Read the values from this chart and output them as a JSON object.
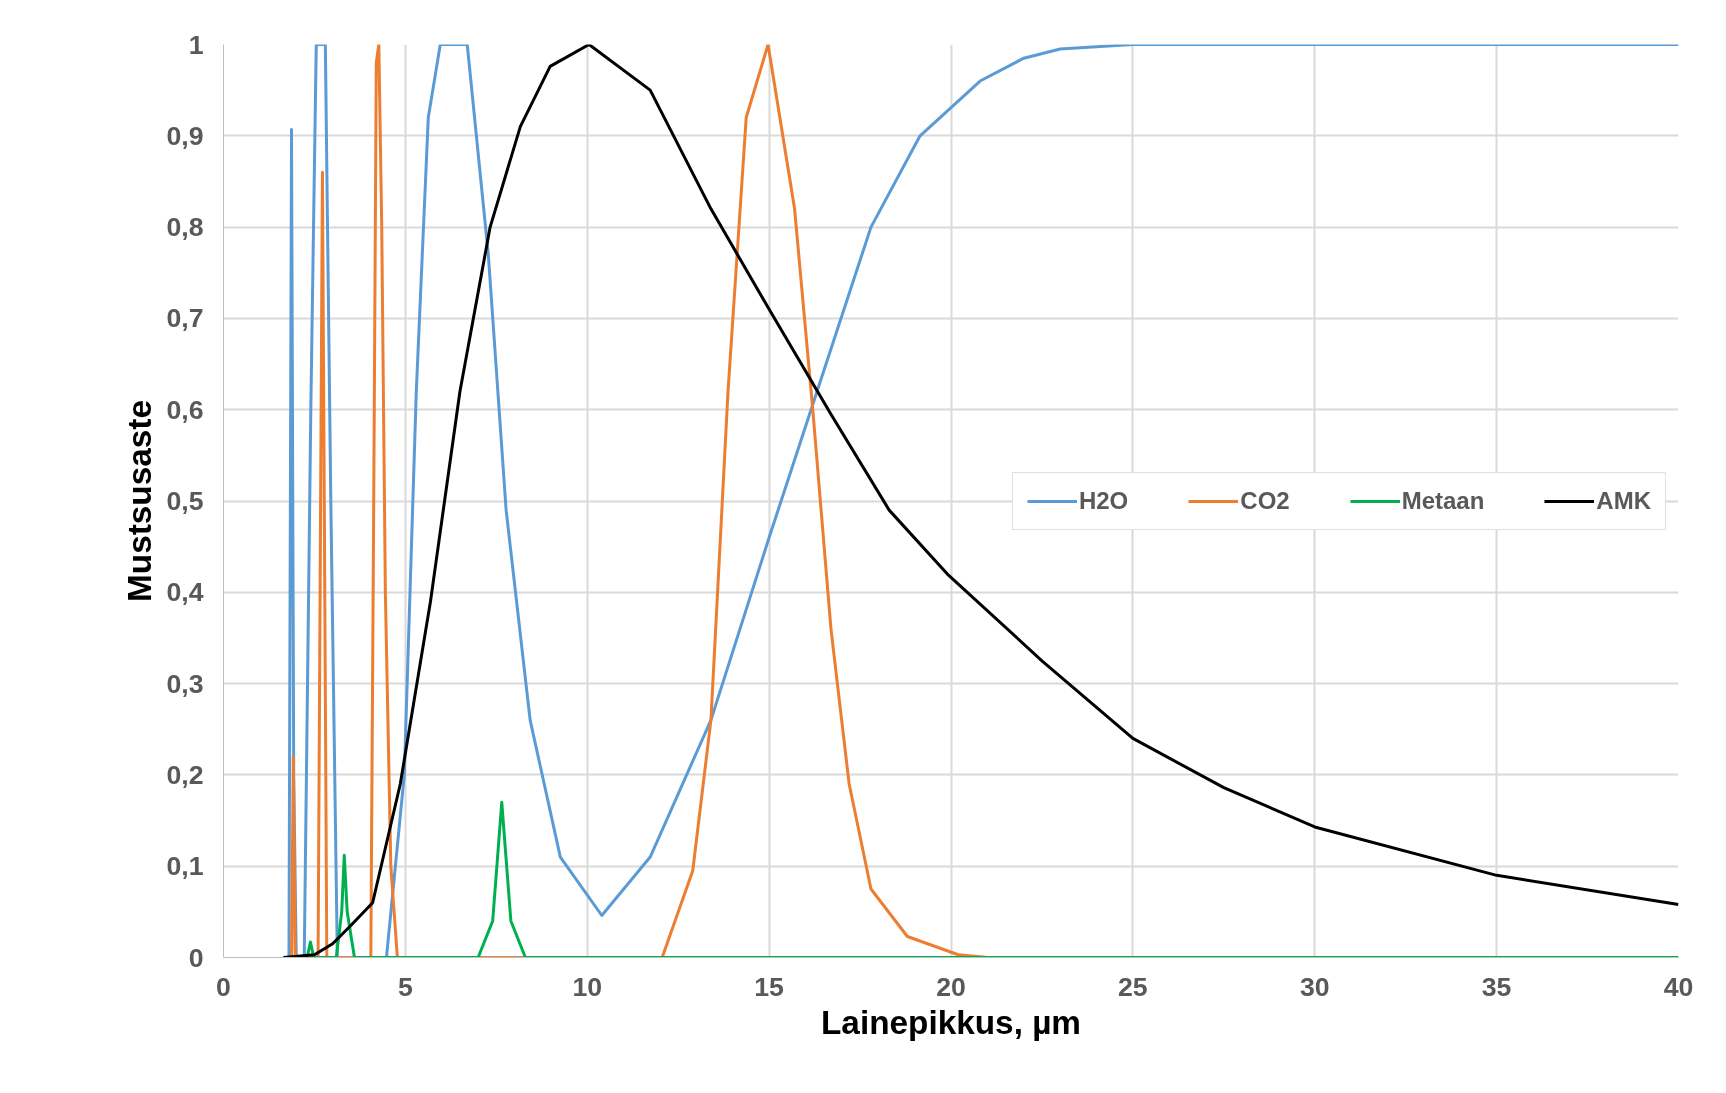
{
  "chart_data": {
    "type": "line",
    "xlabel": "Lainepikkus, µm",
    "ylabel": "Mustsusaste",
    "xlim": [
      0,
      40
    ],
    "ylim": [
      0,
      1
    ],
    "xticks": [
      0,
      5,
      10,
      15,
      20,
      25,
      30,
      35,
      40
    ],
    "yticks": [
      0,
      {
        "value": 0.1,
        "label": "0,1"
      },
      {
        "value": 0.2,
        "label": "0,2"
      },
      {
        "value": 0.3,
        "label": "0,3"
      },
      {
        "value": 0.4,
        "label": "0,4"
      },
      {
        "value": 0.5,
        "label": "0,5"
      },
      {
        "value": 0.6,
        "label": "0,6"
      },
      {
        "value": 0.7,
        "label": "0,7"
      },
      {
        "value": 0.8,
        "label": "0,8"
      },
      {
        "value": 0.9,
        "label": "0,9"
      },
      1
    ],
    "grid": true,
    "legend": "right",
    "marker": "none",
    "line_style": "solid",
    "series": [
      {
        "name": "H2O",
        "color": "#5b9bd5",
        "x": [
          1.65,
          1.8,
          1.87,
          1.93,
          2.0,
          2.22,
          2.4,
          2.55,
          2.8,
          2.95,
          3.13,
          4.0,
          4.48,
          4.97,
          5.3,
          5.63,
          5.96,
          6.7,
          7.28,
          7.77,
          8.43,
          9.26,
          10.4,
          11.73,
          13.4,
          15.0,
          16.4,
          17.8,
          19.15,
          20.8,
          22,
          23,
          25,
          40
        ],
        "values": [
          0,
          0,
          0.907,
          0.2,
          0,
          0,
          0.6,
          1,
          1,
          0.5,
          0,
          0,
          0,
          0.2,
          0.62,
          0.92,
          1,
          1,
          0.77,
          0.49,
          0.26,
          0.11,
          0.046,
          0.11,
          0.26,
          0.46,
          0.63,
          0.8,
          0.9,
          0.96,
          0.985,
          0.995,
          1,
          1
        ]
      },
      {
        "name": "CO2",
        "color": "#ed7d31",
        "x": [
          1.65,
          1.87,
          1.92,
          1.97,
          2.6,
          2.72,
          2.84,
          4.05,
          4.13,
          4.2,
          4.27,
          4.35,
          4.45,
          4.6,
          4.78,
          12.06,
          12.9,
          13.4,
          13.87,
          14.37,
          14.97,
          15.7,
          16.2,
          16.7,
          17.2,
          17.8,
          18.8,
          20.2,
          21,
          40
        ],
        "values": [
          0,
          0,
          0.22,
          0,
          0,
          0.86,
          0,
          0,
          0.5,
          0.98,
          1,
          0.8,
          0.4,
          0.1,
          0,
          0,
          0.095,
          0.26,
          0.62,
          0.92,
          1,
          0.82,
          0.6,
          0.36,
          0.19,
          0.075,
          0.023,
          0.003,
          0,
          0
        ]
      },
      {
        "name": "Metaan",
        "color": "#00b050",
        "x": [
          1.65,
          2.3,
          2.39,
          2.48,
          3.1,
          3.25,
          3.32,
          3.4,
          3.6,
          7.0,
          7.4,
          7.65,
          7.9,
          8.3,
          40
        ],
        "values": [
          0,
          0,
          0.017,
          0,
          0,
          0.05,
          0.112,
          0.05,
          0,
          0,
          0.04,
          0.17,
          0.04,
          0,
          0
        ]
      },
      {
        "name": "AMK",
        "color": "#000000",
        "x": [
          1.65,
          2.5,
          3,
          3.5,
          4.1,
          4.86,
          5.69,
          6.5,
          7.33,
          8.16,
          8.98,
          10.05,
          11.73,
          13.4,
          15.0,
          16.7,
          18.3,
          19.9,
          22.5,
          25,
          27.5,
          30,
          35,
          40
        ],
        "values": [
          0,
          0.003,
          0.015,
          0.035,
          0.06,
          0.19,
          0.39,
          0.62,
          0.8,
          0.91,
          0.976,
          1,
          0.95,
          0.82,
          0.71,
          0.595,
          0.49,
          0.42,
          0.325,
          0.24,
          0.186,
          0.143,
          0.09,
          0.058
        ]
      }
    ]
  }
}
